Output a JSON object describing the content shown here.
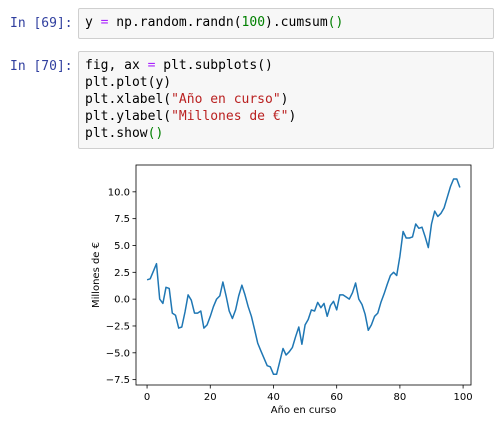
{
  "cells": [
    {
      "prompt": "In [69]:",
      "code_segments": [
        {
          "t": "y ",
          "c": ""
        },
        {
          "t": "=",
          "c": "op"
        },
        {
          "t": " np.random.randn(",
          "c": ""
        },
        {
          "t": "100",
          "c": "num"
        },
        {
          "t": ").cumsum",
          "c": ""
        },
        {
          "t": "()",
          "c": "paren"
        }
      ]
    },
    {
      "prompt": "In [70]:",
      "lines": [
        [
          {
            "t": "fig, ax ",
            "c": ""
          },
          {
            "t": "=",
            "c": "op"
          },
          {
            "t": " plt.subplots()",
            "c": ""
          }
        ],
        [
          {
            "t": "plt.plot(y)",
            "c": ""
          }
        ],
        [
          {
            "t": "plt.xlabel(",
            "c": ""
          },
          {
            "t": "\"Año en curso\"",
            "c": "str"
          },
          {
            "t": ")",
            "c": ""
          }
        ],
        [
          {
            "t": "plt.ylabel(",
            "c": ""
          },
          {
            "t": "\"Millones de €\"",
            "c": "str"
          },
          {
            "t": ")",
            "c": ""
          }
        ],
        [
          {
            "t": "plt.show",
            "c": ""
          },
          {
            "t": "()",
            "c": "paren"
          }
        ]
      ]
    }
  ],
  "chart_data": {
    "type": "line",
    "xlabel": "Año en curso",
    "ylabel": "Millones de €",
    "xlim": [
      -3.5,
      102.5
    ],
    "ylim": [
      -8.0,
      12.5
    ],
    "xticks": [
      0,
      20,
      40,
      60,
      80,
      100
    ],
    "yticks": [
      -7.5,
      -5.0,
      -2.5,
      0.0,
      2.5,
      5.0,
      7.5,
      10.0
    ],
    "xtick_labels": [
      "0",
      "20",
      "40",
      "60",
      "80",
      "100"
    ],
    "ytick_labels": [
      "−7.5",
      "−5.0",
      "−2.5",
      "0.0",
      "2.5",
      "5.0",
      "7.5",
      "10.0"
    ],
    "grid": false,
    "line_color": "#1f77b4",
    "x": [
      0,
      1,
      2,
      3,
      4,
      5,
      6,
      7,
      8,
      9,
      10,
      11,
      12,
      13,
      14,
      15,
      16,
      17,
      18,
      19,
      20,
      21,
      22,
      23,
      24,
      25,
      26,
      27,
      28,
      29,
      30,
      31,
      32,
      33,
      34,
      35,
      36,
      37,
      38,
      39,
      40,
      41,
      42,
      43,
      44,
      45,
      46,
      47,
      48,
      49,
      50,
      51,
      52,
      53,
      54,
      55,
      56,
      57,
      58,
      59,
      60,
      61,
      62,
      63,
      64,
      65,
      66,
      67,
      68,
      69,
      70,
      71,
      72,
      73,
      74,
      75,
      76,
      77,
      78,
      79,
      80,
      81,
      82,
      83,
      84,
      85,
      86,
      87,
      88,
      89,
      90,
      91,
      92,
      93,
      94,
      95,
      96,
      97,
      98,
      99
    ],
    "values": [
      1.8,
      1.9,
      2.6,
      3.3,
      0.0,
      -0.4,
      1.1,
      1.0,
      -1.3,
      -1.5,
      -2.7,
      -2.6,
      -1.2,
      0.4,
      -0.1,
      -1.3,
      -1.3,
      -1.1,
      -2.7,
      -2.4,
      -1.6,
      -0.7,
      0.0,
      0.3,
      1.6,
      0.3,
      -1.1,
      -1.8,
      -1.0,
      0.3,
      1.3,
      0.4,
      -0.7,
      -1.6,
      -2.8,
      -4.1,
      -4.8,
      -5.5,
      -6.2,
      -6.3,
      -7.0,
      -7.0,
      -5.8,
      -4.6,
      -5.2,
      -4.9,
      -4.5,
      -3.5,
      -2.6,
      -4.2,
      -2.4,
      -1.9,
      -1.0,
      -1.1,
      -0.3,
      -0.8,
      -0.4,
      -1.6,
      -0.6,
      -0.2,
      -1.0,
      0.4,
      0.4,
      0.2,
      0.0,
      0.6,
      1.5,
      0.0,
      -0.5,
      -1.4,
      -2.9,
      -2.4,
      -1.6,
      -1.3,
      -0.3,
      0.5,
      1.4,
      2.2,
      2.5,
      2.2,
      4.0,
      6.3,
      5.7,
      5.7,
      5.8,
      7.0,
      6.6,
      6.7,
      5.8,
      4.8,
      7.0,
      8.2,
      7.7,
      8.0,
      8.5,
      9.5,
      10.5,
      11.2,
      11.2,
      10.4
    ]
  }
}
